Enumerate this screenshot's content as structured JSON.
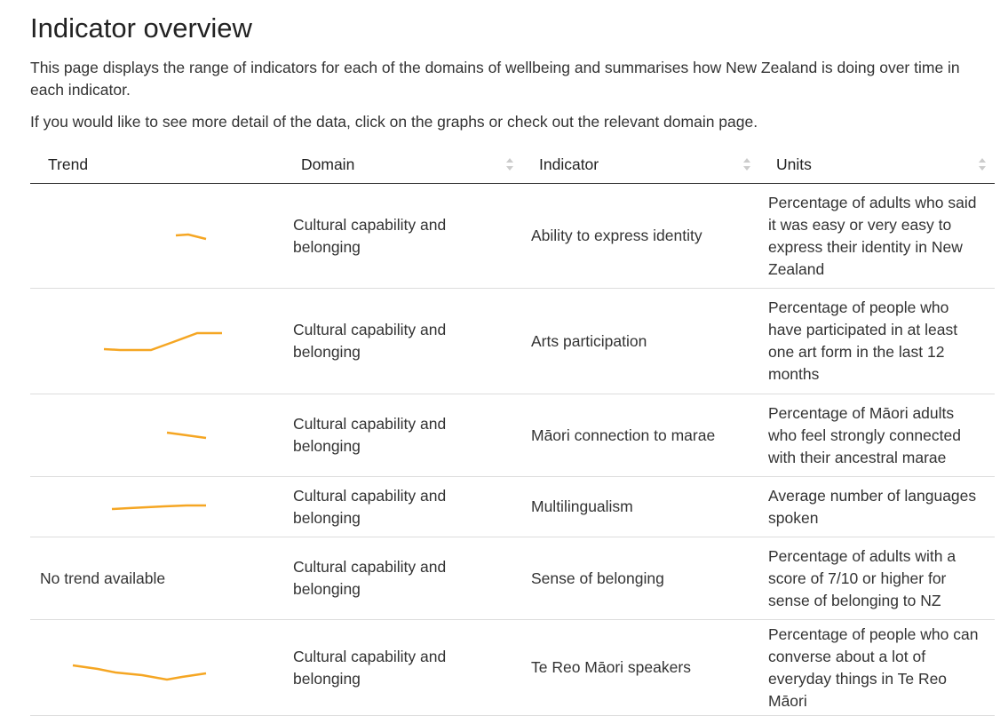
{
  "header": {
    "title": "Indicator overview",
    "paragraphs": [
      "This page displays the range of indicators for each of the domains of wellbeing and summarises how New Zealand is doing over time in each indicator.",
      "If you would like to see more detail of the data, click on the graphs or check out the relevant domain page."
    ]
  },
  "table": {
    "columns": [
      "Trend",
      "Domain",
      "Indicator",
      "Units"
    ],
    "rows": [
      {
        "trend": null,
        "domain": "Cultural capability and belonging",
        "indicator": "Ability to express identity",
        "units": "Percentage of adults who said it was easy or very easy to express their identity in New Zealand"
      },
      {
        "trend": null,
        "domain": "Cultural capability and belonging",
        "indicator": "Arts participation",
        "units": "Percentage of people who have participated in at least one art form in the last 12 months"
      },
      {
        "trend": null,
        "domain": "Cultural capability and belonging",
        "indicator": "Māori connection to marae",
        "units": "Percentage of Māori adults who feel strongly connected with their ancestral marae"
      },
      {
        "trend": null,
        "domain": "Cultural capability and belonging",
        "indicator": "Multilingualism",
        "units": "Average number of languages spoken"
      },
      {
        "trend": "No trend available",
        "domain": "Cultural capability and belonging",
        "indicator": "Sense of belonging",
        "units": "Percentage of adults with a score of 7/10 or higher for sense of belonging to NZ"
      },
      {
        "trend": null,
        "domain": "Cultural capability and belonging",
        "indicator": "Te Reo Māori speakers",
        "units": "Percentage of people who can converse about a lot of everyday things in Te Reo Māori"
      }
    ]
  }
}
